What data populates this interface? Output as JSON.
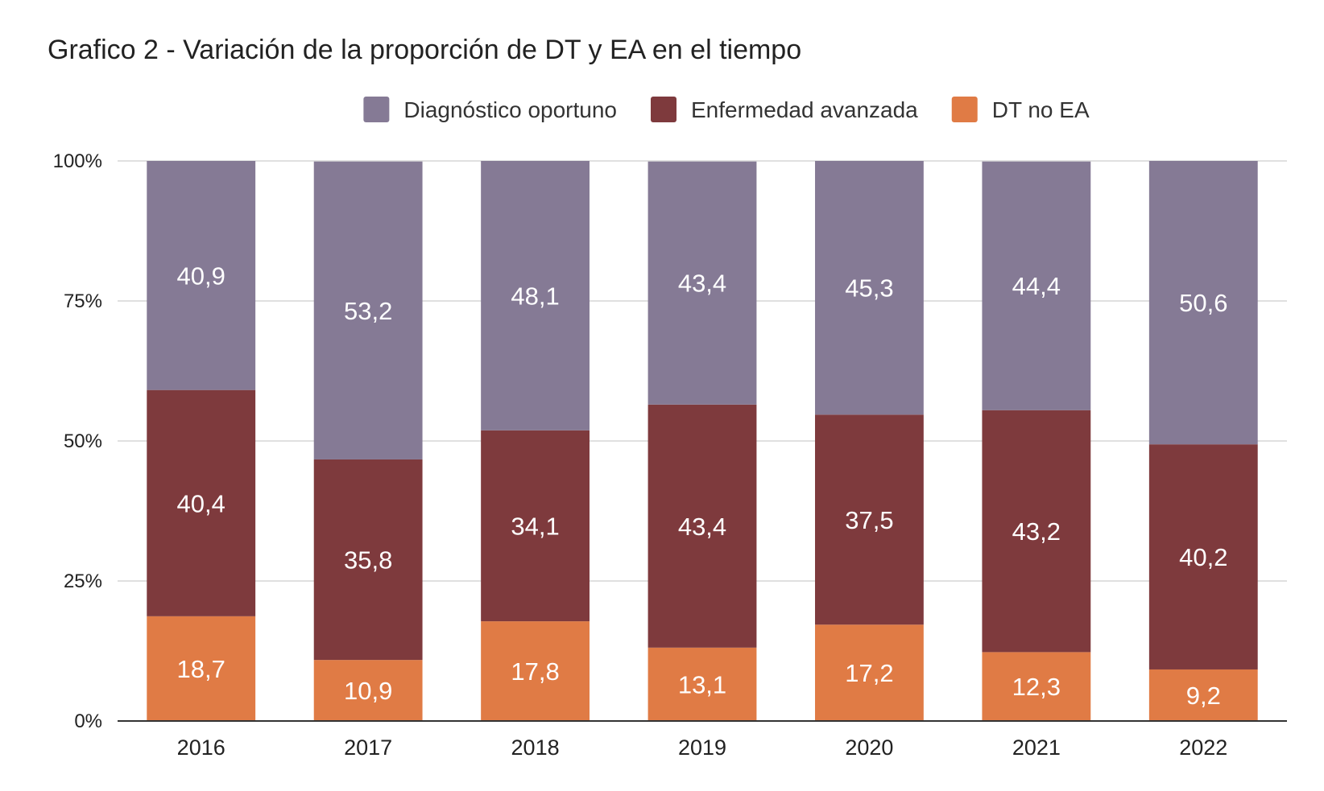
{
  "chart_data": {
    "type": "bar",
    "stacked": true,
    "normalized_percent": true,
    "title": "Grafico 2 - Variación de la proporción de DT y EA en el tiempo",
    "xlabel": "",
    "ylabel": "",
    "categories": [
      "2016",
      "2017",
      "2018",
      "2019",
      "2020",
      "2021",
      "2022"
    ],
    "yticks": [
      "0%",
      "25%",
      "50%",
      "75%",
      "100%"
    ],
    "ylim": [
      0,
      100
    ],
    "grid": true,
    "legend_position": "top",
    "series": [
      {
        "name": "DT no EA",
        "color": "#e07b45",
        "values": [
          18.7,
          10.9,
          17.8,
          13.1,
          17.2,
          12.3,
          9.2
        ],
        "labels": [
          "18,7",
          "10,9",
          "17,8",
          "13,1",
          "17,2",
          "12,3",
          "9,2"
        ]
      },
      {
        "name": "Enfermedad avanzada",
        "color": "#7e3a3d",
        "values": [
          40.4,
          35.8,
          34.1,
          43.4,
          37.5,
          43.2,
          40.2
        ],
        "labels": [
          "40,4",
          "35,8",
          "34,1",
          "43,4",
          "37,5",
          "43,2",
          "40,2"
        ]
      },
      {
        "name": "Diagnóstico oportuno",
        "color": "#857a95",
        "values": [
          40.9,
          53.2,
          48.1,
          43.4,
          45.3,
          44.4,
          50.6
        ],
        "labels": [
          "40,9",
          "53,2",
          "48,1",
          "43,4",
          "45,3",
          "44,4",
          "50,6"
        ]
      }
    ],
    "legend_order": [
      "Diagnóstico oportuno",
      "Enfermedad avanzada",
      "DT no EA"
    ]
  }
}
